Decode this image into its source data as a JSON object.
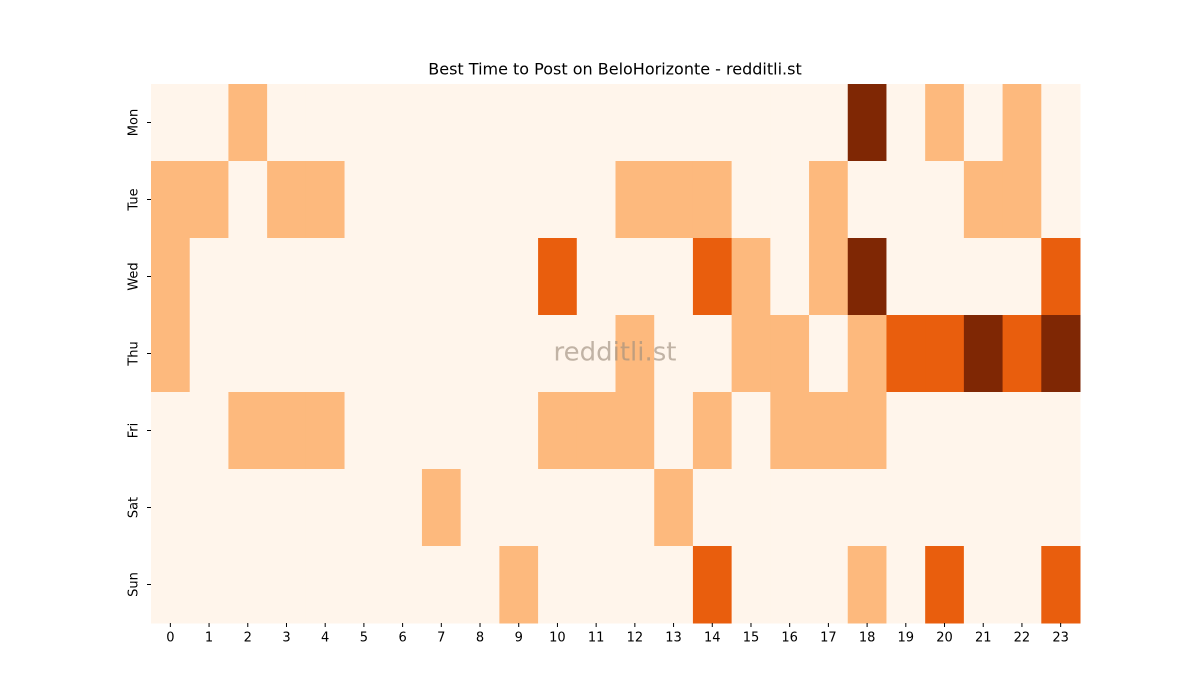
{
  "chart_data": {
    "type": "heatmap",
    "title": "Best Time to Post on BeloHorizonte - redditli.st",
    "watermark": "redditli.st",
    "x": [
      0,
      1,
      2,
      3,
      4,
      5,
      6,
      7,
      8,
      9,
      10,
      11,
      12,
      13,
      14,
      15,
      16,
      17,
      18,
      19,
      20,
      21,
      22,
      23
    ],
    "y": [
      "Mon",
      "Tue",
      "Wed",
      "Thu",
      "Fri",
      "Sat",
      "Sun"
    ],
    "values": [
      [
        0,
        0,
        1,
        0,
        0,
        0,
        0,
        0,
        0,
        0,
        0,
        0,
        0,
        0,
        0,
        0,
        0,
        0,
        3,
        0,
        1,
        0,
        1,
        0
      ],
      [
        1,
        1,
        0,
        1,
        1,
        0,
        0,
        0,
        0,
        0,
        0,
        0,
        1,
        1,
        1,
        0,
        0,
        1,
        0,
        0,
        0,
        1,
        1,
        0
      ],
      [
        1,
        0,
        0,
        0,
        0,
        0,
        0,
        0,
        0,
        0,
        2,
        0,
        0,
        0,
        2,
        1,
        0,
        1,
        3,
        0,
        0,
        0,
        0,
        2
      ],
      [
        1,
        0,
        0,
        0,
        0,
        0,
        0,
        0,
        0,
        0,
        0,
        0,
        1,
        0,
        0,
        1,
        1,
        0,
        1,
        2,
        2,
        3,
        2,
        3
      ],
      [
        0,
        0,
        1,
        1,
        1,
        0,
        0,
        0,
        0,
        0,
        1,
        1,
        1,
        0,
        1,
        0,
        1,
        1,
        1,
        0,
        0,
        0,
        0,
        0
      ],
      [
        0,
        0,
        0,
        0,
        0,
        0,
        0,
        1,
        0,
        0,
        0,
        0,
        0,
        1,
        0,
        0,
        0,
        0,
        0,
        0,
        0,
        0,
        0,
        0
      ],
      [
        0,
        0,
        0,
        0,
        0,
        0,
        0,
        0,
        0,
        1,
        0,
        0,
        0,
        0,
        2,
        0,
        0,
        0,
        1,
        0,
        2,
        0,
        0,
        2
      ]
    ],
    "vlim": [
      0,
      3
    ],
    "colors": [
      "#fff5eb",
      "#fdb97d",
      "#e95e0d",
      "#7f2704"
    ]
  }
}
